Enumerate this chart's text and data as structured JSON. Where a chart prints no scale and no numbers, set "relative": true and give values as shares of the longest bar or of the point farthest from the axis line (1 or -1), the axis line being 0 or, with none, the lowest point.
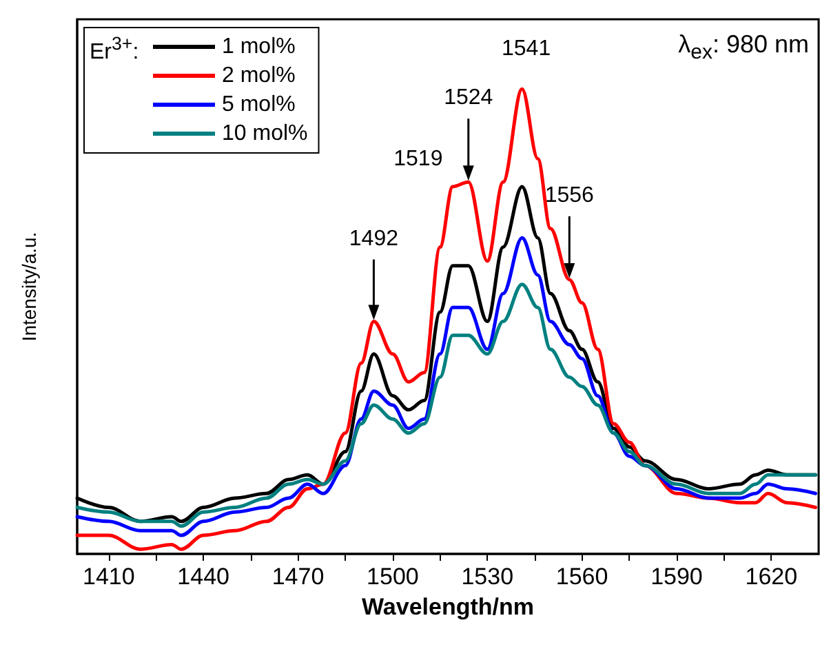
{
  "chart_data": {
    "type": "line",
    "relative": true,
    "xlabel": "Wavelength/nm",
    "ylabel": "Intensity/a.u.",
    "legend_title": "Er$^{3+}$:",
    "legend": "top left",
    "grid": false,
    "marker": "none",
    "line_style": "solid",
    "xlim": [
      1400,
      1635
    ],
    "xticks": [
      1410,
      {
        "value": 1425,
        "label": null
      },
      1440,
      {
        "value": 1455,
        "label": null
      },
      1470,
      {
        "value": 1485,
        "label": null
      },
      1500,
      {
        "value": 1515,
        "label": null
      },
      1530,
      {
        "value": 1545,
        "label": null
      },
      1560,
      {
        "value": 1575,
        "label": null
      },
      1590,
      {
        "value": 1605,
        "label": null
      },
      1620
    ],
    "x": [
      1400,
      1410,
      1420,
      1430,
      1433,
      1440,
      1450,
      1460,
      1467,
      1473,
      1478,
      1485,
      1490,
      1494,
      1500,
      1505,
      1510,
      1515,
      1519,
      1524,
      1530,
      1535,
      1541,
      1546,
      1550,
      1556,
      1560,
      1565,
      1570,
      1575,
      1580,
      1590,
      1600,
      1610,
      1615,
      1619,
      1625,
      1634
    ],
    "series": [
      {
        "name": "1 mol%",
        "color": "#000000",
        "values": [
          0.12,
          0.1,
          0.07,
          0.08,
          0.07,
          0.1,
          0.12,
          0.13,
          0.16,
          0.17,
          0.15,
          0.22,
          0.35,
          0.43,
          0.34,
          0.31,
          0.33,
          0.52,
          0.62,
          0.62,
          0.5,
          0.66,
          0.79,
          0.68,
          0.56,
          0.48,
          0.44,
          0.37,
          0.27,
          0.23,
          0.2,
          0.16,
          0.14,
          0.15,
          0.17,
          0.18,
          0.17,
          0.17
        ]
      },
      {
        "name": "2 mol%",
        "color": "#ff0000",
        "values": [
          0.04,
          0.04,
          0.01,
          0.02,
          0.01,
          0.04,
          0.05,
          0.07,
          0.1,
          0.14,
          0.15,
          0.26,
          0.41,
          0.5,
          0.43,
          0.37,
          0.39,
          0.66,
          0.79,
          0.8,
          0.63,
          0.8,
          1,
          0.85,
          0.7,
          0.59,
          0.54,
          0.44,
          0.28,
          0.24,
          0.19,
          0.13,
          0.12,
          0.11,
          0.11,
          0.13,
          0.11,
          0.1
        ]
      },
      {
        "name": "5 mol%",
        "color": "#0000ff",
        "values": [
          0.08,
          0.07,
          0.05,
          0.05,
          0.04,
          0.07,
          0.09,
          0.1,
          0.12,
          0.15,
          0.13,
          0.19,
          0.29,
          0.35,
          0.32,
          0.27,
          0.29,
          0.43,
          0.53,
          0.53,
          0.44,
          0.56,
          0.68,
          0.6,
          0.5,
          0.45,
          0.42,
          0.34,
          0.26,
          0.21,
          0.19,
          0.14,
          0.12,
          0.12,
          0.13,
          0.15,
          0.14,
          0.13
        ]
      },
      {
        "name": "10 mol%",
        "color": "#008080",
        "values": [
          0.1,
          0.09,
          0.07,
          0.07,
          0.06,
          0.09,
          0.1,
          0.12,
          0.15,
          0.16,
          0.15,
          0.2,
          0.28,
          0.32,
          0.29,
          0.26,
          0.28,
          0.38,
          0.47,
          0.47,
          0.43,
          0.5,
          0.58,
          0.53,
          0.44,
          0.38,
          0.36,
          0.32,
          0.26,
          0.22,
          0.19,
          0.15,
          0.13,
          0.13,
          0.15,
          0.17,
          0.17,
          0.17
        ]
      }
    ],
    "annotations": [
      {
        "text": "1492",
        "x": 1494,
        "y": 0.5
      },
      {
        "text": "1519",
        "x": 1519,
        "y": 0.79
      },
      {
        "text": "1524",
        "x": 1524,
        "y": 0.8
      },
      {
        "text": "1541",
        "x": 1541,
        "y": 1
      },
      {
        "text": "1556",
        "x": 1556,
        "y": 0.59
      },
      "λ$_{ex}$: 980 nm"
    ]
  }
}
